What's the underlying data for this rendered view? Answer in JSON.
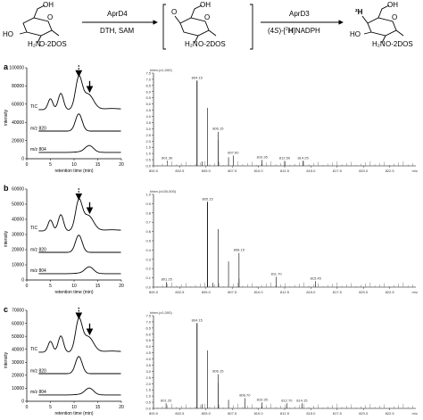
{
  "scheme": {
    "step1_enzyme": "AprD4",
    "step1_conditions": "DTH, SAM",
    "step2_enzyme": "AprD3",
    "step2_conditions_prefix": "(4",
    "step2_conditions_S": "S",
    "step2_conditions_mid": ")-[",
    "step2_conditions_2": "2",
    "step2_conditions_H": "H",
    "step2_conditions_suffix": "]NADPH",
    "mol1_oh_top": "OH",
    "mol1_o_ring": "O",
    "mol1_ho": "HO",
    "mol1_nh2": "H₂N",
    "mol1_o2dos": "O-2DOS",
    "mol2_o_keto": "O",
    "mol2_oh_top": "OH",
    "mol2_o_ring": "O",
    "mol2_nh2": "H₂N",
    "mol2_o2dos": "O-2DOS",
    "mol3_deut": "²H",
    "mol3_oh_top": "OH",
    "mol3_o_ring": "O",
    "mol3_ho": "HO",
    "mol3_nh2": "H₂N",
    "mol3_o2dos": "O-2DOS"
  },
  "panels": [
    {
      "label": "a",
      "lc": {
        "y_ticks": [
          "100000",
          "80000",
          "60000",
          "40000",
          "20000",
          "0"
        ],
        "x_ticks": [
          "0",
          "5",
          "10",
          "15",
          "20"
        ],
        "ylabel": "intensity",
        "xlabel": "retention time (min)",
        "traces": [
          "TIC",
          "m/z 820",
          "m/z 804"
        ]
      },
      "ms": {
        "header": "Inten.(x1,000)",
        "y_ticks": [
          "7.5",
          "7.0",
          "6.5",
          "6.0",
          "5.5",
          "5.0",
          "4.5",
          "4.0",
          "3.5",
          "3.0",
          "2.5",
          "2.0",
          "1.5",
          "1.0",
          "0.5",
          "0.0"
        ],
        "x_ticks": [
          "800.0",
          "802.5",
          "805.0",
          "807.5",
          "810.0",
          "812.5",
          "815.0",
          "817.5",
          "820.0",
          "822.5"
        ],
        "x_unit": "m/z",
        "peak_labels": [
          "801.30",
          "804.15",
          "806.15",
          "807.60",
          "810.35",
          "812.50",
          "814.25"
        ]
      }
    },
    {
      "label": "b",
      "lc": {
        "y_ticks": [
          "60000",
          "50000",
          "40000",
          "30000",
          "20000",
          "10000",
          "0"
        ],
        "x_ticks": [
          "0",
          "5",
          "10",
          "15",
          "20"
        ],
        "ylabel": "intensity",
        "xlabel": "retention time (min)",
        "traces": [
          "TIC",
          "m/z 820",
          "m/z 804"
        ]
      },
      "ms": {
        "header": "Inten.(x100,000)",
        "y_ticks": [
          "1.0",
          "0.9",
          "0.8",
          "0.7",
          "0.6",
          "0.5",
          "0.4",
          "0.3",
          "0.2",
          "0.1",
          "0.0"
        ],
        "x_ticks": [
          "800.0",
          "802.5",
          "805.0",
          "807.5",
          "810.0",
          "812.5",
          "815.0",
          "817.5",
          "820.0",
          "822.5"
        ],
        "x_unit": "m/z",
        "peak_labels": [
          "801.25",
          "805.15",
          "808.15",
          "811.70",
          "815.45"
        ]
      }
    },
    {
      "label": "c",
      "lc": {
        "y_ticks": [
          "70000",
          "60000",
          "50000",
          "40000",
          "30000",
          "20000",
          "10000",
          "0"
        ],
        "x_ticks": [
          "0",
          "5",
          "10",
          "15",
          "20"
        ],
        "ylabel": "intensity",
        "xlabel": "retention time (min)",
        "traces": [
          "TIC",
          "m/z 820",
          "m/z 804"
        ]
      },
      "ms": {
        "header": "Inten.(x1,000)",
        "y_ticks": [
          "7.5",
          "7.0",
          "6.5",
          "6.0",
          "5.5",
          "5.0",
          "4.5",
          "4.0",
          "3.5",
          "3.0",
          "2.5",
          "2.0",
          "1.5",
          "1.0",
          "0.5",
          "0.0"
        ],
        "x_ticks": [
          "800.0",
          "802.5",
          "805.0",
          "807.5",
          "810.0",
          "812.5",
          "815.0",
          "817.5",
          "820.0",
          "822.5"
        ],
        "x_unit": "m/z",
        "peak_labels": [
          "801.20",
          "804.15",
          "806.15",
          "808.70",
          "810.35",
          "812.70",
          "814.15"
        ]
      }
    }
  ]
}
